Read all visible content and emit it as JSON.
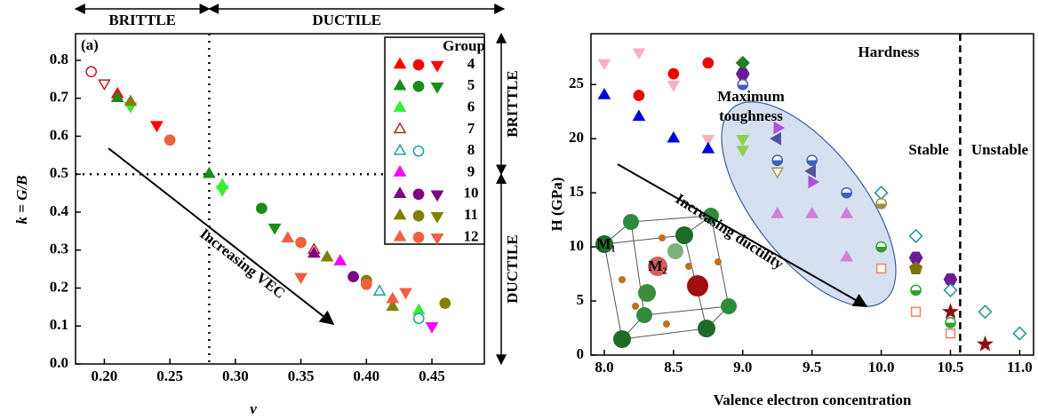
{
  "chart_data": [
    {
      "type": "scatter",
      "panel_label": "(a)",
      "x_label": "ν",
      "y_label": "k = G/B",
      "top_regions": [
        "BRITTLE",
        "DUCTILE"
      ],
      "side_regions": [
        "BRITTLE",
        "DUCTILE"
      ],
      "arrow_label": "Increasing VEC",
      "legend_title": "Group",
      "xlim": [
        0.178,
        0.49
      ],
      "ylim": [
        0,
        0.87
      ],
      "xticks": [
        {
          "value": 0.2,
          "label": "0.20"
        },
        0.25,
        {
          "value": 0.3,
          "label": "0.30"
        },
        0.35,
        {
          "value": 0.4,
          "label": "0.40"
        },
        0.45
      ],
      "yticks": [
        {
          "value": 0,
          "label": "0.0"
        },
        0.1,
        0.2,
        0.3,
        0.4,
        0.5,
        0.6,
        0.7,
        0.8
      ],
      "vlines": [
        0.28
      ],
      "hlines": [
        0.5
      ],
      "series": [
        {
          "name": "4",
          "color": "#ff0000",
          "filled": true,
          "legend_markers": [
            "triangle",
            "circle",
            "triangle-down"
          ],
          "markers": [
            "triangle",
            "triangle-down"
          ],
          "x": [
            0.21,
            0.24
          ],
          "values": [
            0.71,
            0.63
          ]
        },
        {
          "name": "5",
          "color": "#1a8c1a",
          "filled": true,
          "legend_markers": [
            "triangle",
            "circle",
            "triangle-down"
          ],
          "markers": [
            "triangle",
            "triangle",
            "circle",
            "triangle-down"
          ],
          "x": [
            0.21,
            0.28,
            0.32,
            0.33
          ],
          "values": [
            0.7,
            0.5,
            0.41,
            0.36
          ]
        },
        {
          "name": "6",
          "color": "#33ee33",
          "filled": true,
          "legend_markers": [
            "triangle"
          ],
          "markers": [
            "triangle-down",
            "triangle",
            "triangle-down",
            "triangle"
          ],
          "x": [
            0.22,
            0.29,
            0.29,
            0.44
          ],
          "values": [
            0.68,
            0.47,
            0.46,
            0.14
          ]
        },
        {
          "name": "7",
          "color": "#b22222",
          "filled": false,
          "legend_markers": [
            "triangle"
          ],
          "markers": [
            "circle",
            "triangle-down",
            "triangle"
          ],
          "x": [
            0.19,
            0.2,
            0.36
          ],
          "values": [
            0.77,
            0.74,
            0.3
          ]
        },
        {
          "name": "8",
          "color": "#20a0a0",
          "filled": false,
          "legend_markers": [
            "triangle",
            "circle"
          ],
          "markers": [
            "triangle",
            "circle"
          ],
          "x": [
            0.41,
            0.44
          ],
          "values": [
            0.19,
            0.12
          ]
        },
        {
          "name": "9",
          "color": "#ff00ff",
          "filled": true,
          "legend_markers": [
            "triangle"
          ],
          "markers": [
            "triangle",
            "triangle-down"
          ],
          "x": [
            0.38,
            0.45
          ],
          "values": [
            0.27,
            0.1
          ]
        },
        {
          "name": "10",
          "color": "#800080",
          "filled": true,
          "legend_markers": [
            "triangle",
            "circle",
            "triangle-down"
          ],
          "markers": [
            "triangle",
            "circle"
          ],
          "x": [
            0.36,
            0.39
          ],
          "values": [
            0.29,
            0.23
          ]
        },
        {
          "name": "11",
          "color": "#808000",
          "filled": true,
          "legend_markers": [
            "triangle",
            "circle",
            "triangle-down"
          ],
          "markers": [
            "triangle",
            "triangle",
            "circle",
            "triangle",
            "circle"
          ],
          "x": [
            0.22,
            0.37,
            0.4,
            0.42,
            0.46
          ],
          "values": [
            0.69,
            0.28,
            0.22,
            0.15,
            0.16
          ]
        },
        {
          "name": "12",
          "color": "#f06040",
          "filled": true,
          "legend_markers": [
            "triangle",
            "circle",
            "triangle-down"
          ],
          "markers": [
            "circle",
            "triangle",
            "circle",
            "triangle-down",
            "circle",
            "triangle",
            "triangle-down"
          ],
          "x": [
            0.25,
            0.34,
            0.35,
            0.35,
            0.4,
            0.42,
            0.43
          ],
          "values": [
            0.59,
            0.33,
            0.32,
            0.23,
            0.21,
            0.17,
            0.19
          ]
        }
      ]
    },
    {
      "type": "scatter",
      "title": "Hardness",
      "x_label": "Valence electron concentration",
      "y_label": "H (GPa)",
      "region_labels": [
        "Stable",
        "Unstable"
      ],
      "ellipse_label": [
        "Maximum",
        "toughness"
      ],
      "arrow_label": "Increasing ductility",
      "inset_labels": [
        "M₁",
        "M₂"
      ],
      "xlim": [
        7.904,
        11.1
      ],
      "ylim": [
        0,
        29.7
      ],
      "xticks": [
        {
          "value": 8,
          "label": "8.0"
        },
        8.5,
        {
          "value": 9,
          "label": "9.0"
        },
        9.5,
        {
          "value": 10,
          "label": "10.0"
        },
        10.5,
        {
          "value": 11,
          "label": "11.0"
        }
      ],
      "yticks": [
        0,
        5,
        10,
        15,
        20,
        25
      ],
      "vlines": [
        10.57
      ],
      "series": [
        {
          "color": "#ffb0c0",
          "filled": true,
          "marker": "triangle-down",
          "x": [
            8,
            8.25,
            8.5,
            8.75
          ],
          "values": [
            27,
            28,
            25,
            20
          ]
        },
        {
          "color": "#ee0000",
          "filled": true,
          "marker": "circle",
          "x": [
            8.25,
            8.5,
            8.75
          ],
          "values": [
            24,
            26,
            27
          ]
        },
        {
          "color": "#0000dd",
          "filled": true,
          "marker": "triangle",
          "x": [
            8,
            8.25,
            8.5,
            8.75
          ],
          "values": [
            24,
            22,
            20,
            19
          ]
        },
        {
          "color": "#208020",
          "filled": true,
          "marker": "diamond",
          "x": [
            9
          ],
          "values": [
            27
          ]
        },
        {
          "color": "#6a1b9a",
          "filled": true,
          "marker": "hexagon",
          "x": [
            9,
            10.25,
            10.5
          ],
          "values": [
            26,
            9,
            7
          ]
        },
        {
          "color": "#4060c0",
          "filled": true,
          "marker": "half-circle",
          "x": [
            9,
            9.25,
            9.5,
            9.75
          ],
          "values": [
            25,
            18,
            18,
            15
          ]
        },
        {
          "color": "#90d050",
          "filled": true,
          "marker": "triangle-down",
          "x": [
            9,
            9
          ],
          "values": [
            20,
            19
          ]
        },
        {
          "color": "#b050e0",
          "filled": true,
          "marker": "triangle-right",
          "x": [
            9.25,
            9.5
          ],
          "values": [
            21,
            16
          ]
        },
        {
          "color": "#a0a040",
          "filled": false,
          "marker": "triangle-down",
          "x": [
            9.25
          ],
          "values": [
            17
          ]
        },
        {
          "color": "#5050a0",
          "filled": true,
          "marker": "triangle-left",
          "x": [
            9.25,
            9.5
          ],
          "values": [
            20,
            17
          ]
        },
        {
          "color": "#d080d0",
          "filled": true,
          "marker": "triangle",
          "x": [
            9.25,
            9.5,
            9.75,
            9.75
          ],
          "values": [
            13,
            13,
            13,
            9
          ]
        },
        {
          "color": "#209090",
          "filled": false,
          "marker": "diamond",
          "x": [
            10,
            10.25,
            10.5,
            10.75,
            11
          ],
          "values": [
            15,
            11,
            6,
            4,
            2
          ]
        },
        {
          "color": "#a09040",
          "filled": true,
          "marker": "half-circle",
          "x": [
            10
          ],
          "values": [
            14
          ]
        },
        {
          "color": "#30a030",
          "filled": true,
          "marker": "half-circle",
          "x": [
            10,
            10.25,
            10.5
          ],
          "values": [
            10,
            6,
            3
          ]
        },
        {
          "color": "#f08060",
          "filled": false,
          "marker": "square",
          "x": [
            10,
            10.25,
            10.5
          ],
          "values": [
            8,
            4,
            2
          ]
        },
        {
          "color": "#807000",
          "filled": true,
          "marker": "pentagon",
          "x": [
            10.25
          ],
          "values": [
            8
          ]
        },
        {
          "color": "#8b1010",
          "filled": true,
          "marker": "star",
          "x": [
            10.5,
            10.75
          ],
          "values": [
            4,
            1
          ]
        }
      ]
    }
  ]
}
